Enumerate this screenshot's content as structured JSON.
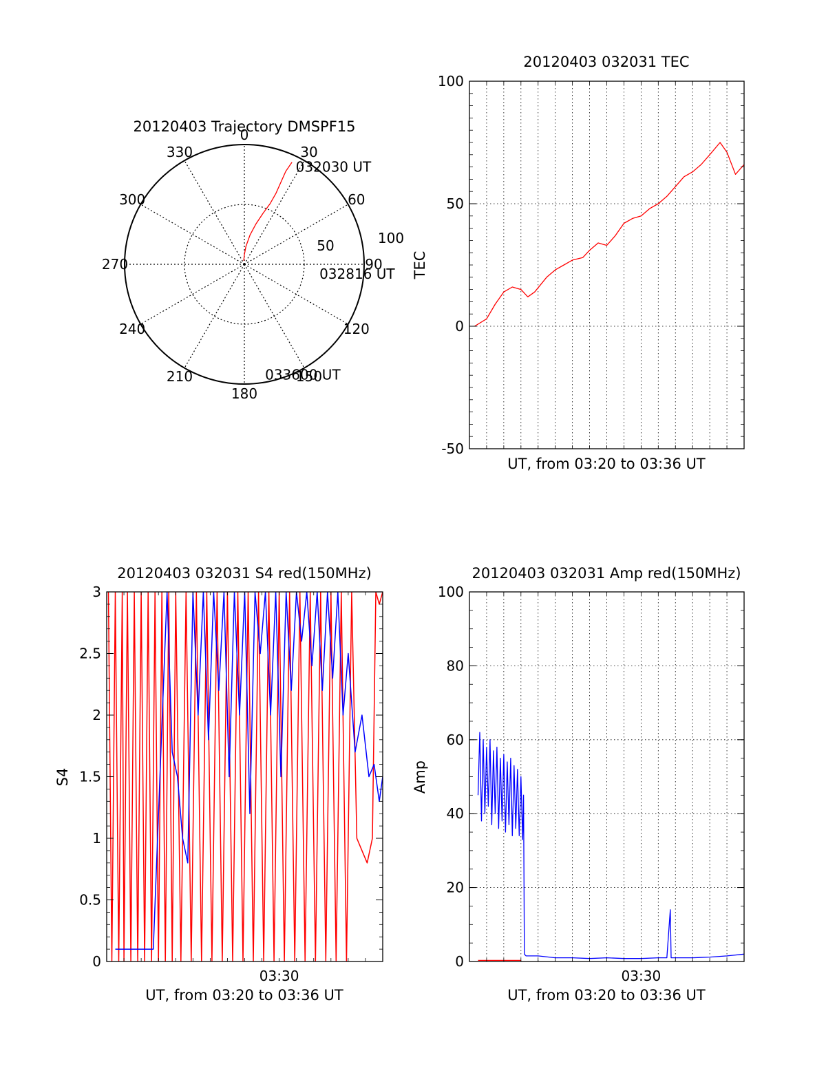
{
  "chart_data": [
    {
      "type": "polar",
      "title": "20120403 Trajectory DMSPF15",
      "angle_labels": [
        "0",
        "30",
        "60",
        "90",
        "120",
        "150",
        "180",
        "210",
        "240",
        "270",
        "300",
        "330"
      ],
      "radial_labels": [
        "50",
        "100"
      ],
      "rlim": [
        0,
        100
      ],
      "grid": true,
      "series": [
        {
          "color": "#ff0000",
          "points": [
            [
              25,
              94
            ],
            [
              24,
              85
            ],
            [
              24,
              75
            ],
            [
              24,
              65
            ],
            [
              23,
              55
            ],
            [
              20,
              45
            ],
            [
              16,
              35
            ],
            [
              11,
              25
            ],
            [
              5,
              15
            ],
            [
              0,
              8
            ],
            [
              -10,
              3
            ]
          ],
          "point_labels": []
        }
      ],
      "annotations": [
        {
          "text": "032030 UT",
          "angle": 27,
          "r": 92
        },
        {
          "text": "032816 UT",
          "angle": 97,
          "r": 62
        },
        {
          "text": "033600 UT",
          "angle": 170,
          "r": 93
        }
      ]
    },
    {
      "type": "line",
      "title": "20120403 032031 TEC",
      "xlabel": "UT, from 03:20 to 03:36 UT",
      "ylabel": "TEC",
      "xlim": [
        0,
        16
      ],
      "ylim": [
        -50,
        100
      ],
      "yticks": [
        -50,
        0,
        50,
        100
      ],
      "xticks": [],
      "grid": true,
      "series": [
        {
          "color": "#ff0000",
          "points": [
            [
              0.3,
              0
            ],
            [
              1.0,
              3
            ],
            [
              1.5,
              9
            ],
            [
              2.0,
              14
            ],
            [
              2.5,
              16
            ],
            [
              3.0,
              15
            ],
            [
              3.4,
              12
            ],
            [
              3.8,
              14
            ],
            [
              4.5,
              20
            ],
            [
              5.0,
              23
            ],
            [
              5.5,
              25
            ],
            [
              6.0,
              27
            ],
            [
              6.6,
              28
            ],
            [
              7.0,
              31
            ],
            [
              7.5,
              34
            ],
            [
              8.0,
              33
            ],
            [
              8.5,
              37
            ],
            [
              9.0,
              42
            ],
            [
              9.5,
              44
            ],
            [
              10.0,
              45
            ],
            [
              10.5,
              48
            ],
            [
              11.0,
              50
            ],
            [
              11.5,
              53
            ],
            [
              12.0,
              57
            ],
            [
              12.5,
              61
            ],
            [
              13.0,
              63
            ],
            [
              13.5,
              66
            ],
            [
              14.0,
              70
            ],
            [
              14.6,
              75
            ],
            [
              15.0,
              71
            ],
            [
              15.5,
              62
            ],
            [
              16.0,
              66
            ]
          ]
        }
      ]
    },
    {
      "type": "line",
      "title": "20120403 032031 S4 red(150MHz)",
      "xlabel": "UT, from 03:20 to 03:36 UT",
      "ylabel": "S4",
      "xlim": [
        0,
        16
      ],
      "ylim": [
        0,
        3
      ],
      "yticks": [
        0,
        0.5,
        1,
        1.5,
        2,
        2.5,
        3
      ],
      "xticks": [
        "03:30"
      ],
      "grid": false,
      "series": [
        {
          "color": "#ff0000",
          "points": [
            [
              0.1,
              3
            ],
            [
              0.3,
              0
            ],
            [
              0.5,
              3
            ],
            [
              0.7,
              0
            ],
            [
              0.9,
              3
            ],
            [
              1.0,
              0
            ],
            [
              1.2,
              3
            ],
            [
              1.4,
              0
            ],
            [
              1.6,
              3
            ],
            [
              1.8,
              0
            ],
            [
              2.0,
              3
            ],
            [
              2.2,
              0
            ],
            [
              2.4,
              3
            ],
            [
              2.6,
              0
            ],
            [
              2.8,
              3
            ],
            [
              3.0,
              0
            ],
            [
              3.2,
              3
            ],
            [
              3.4,
              0
            ],
            [
              3.6,
              3
            ],
            [
              3.8,
              0
            ],
            [
              4.0,
              3
            ],
            [
              4.3,
              0
            ],
            [
              4.6,
              3
            ],
            [
              4.9,
              0
            ],
            [
              5.2,
              3
            ],
            [
              5.5,
              0
            ],
            [
              5.8,
              3
            ],
            [
              6.1,
              0
            ],
            [
              6.4,
              3
            ],
            [
              6.7,
              0
            ],
            [
              7.0,
              3
            ],
            [
              7.3,
              0
            ],
            [
              7.6,
              3
            ],
            [
              7.9,
              0
            ],
            [
              8.2,
              3
            ],
            [
              8.5,
              0
            ],
            [
              8.8,
              3
            ],
            [
              9.1,
              0
            ],
            [
              9.4,
              3
            ],
            [
              9.7,
              0
            ],
            [
              10.0,
              3
            ],
            [
              10.3,
              0
            ],
            [
              10.6,
              3
            ],
            [
              10.9,
              0
            ],
            [
              11.2,
              3
            ],
            [
              11.5,
              0
            ],
            [
              11.8,
              3
            ],
            [
              12.1,
              0
            ],
            [
              12.4,
              3
            ],
            [
              12.7,
              0
            ],
            [
              13.0,
              3
            ],
            [
              13.3,
              0
            ],
            [
              13.6,
              3
            ],
            [
              13.9,
              0
            ],
            [
              14.2,
              3
            ],
            [
              14.5,
              1.0
            ],
            [
              14.8,
              0.9
            ],
            [
              15.1,
              0.8
            ],
            [
              15.4,
              1.0
            ],
            [
              15.6,
              3
            ],
            [
              15.8,
              2.9
            ],
            [
              16.0,
              3
            ]
          ]
        },
        {
          "color": "#0000ff",
          "points": [
            [
              0.5,
              0.1
            ],
            [
              1.5,
              0.1
            ],
            [
              2.7,
              0.1
            ],
            [
              3.5,
              3
            ],
            [
              3.8,
              1.7
            ],
            [
              4.1,
              1.5
            ],
            [
              4.4,
              1.0
            ],
            [
              4.7,
              0.8
            ],
            [
              5.0,
              3
            ],
            [
              5.3,
              2.0
            ],
            [
              5.6,
              3
            ],
            [
              5.9,
              1.8
            ],
            [
              6.2,
              3
            ],
            [
              6.5,
              2.2
            ],
            [
              6.8,
              3
            ],
            [
              7.1,
              1.5
            ],
            [
              7.4,
              3
            ],
            [
              7.7,
              2.0
            ],
            [
              8.0,
              3
            ],
            [
              8.3,
              1.2
            ],
            [
              8.6,
              3
            ],
            [
              8.9,
              2.5
            ],
            [
              9.2,
              3
            ],
            [
              9.5,
              2.0
            ],
            [
              9.8,
              3
            ],
            [
              10.1,
              1.5
            ],
            [
              10.4,
              3
            ],
            [
              10.7,
              2.2
            ],
            [
              11.0,
              3
            ],
            [
              11.3,
              2.6
            ],
            [
              11.6,
              3
            ],
            [
              11.9,
              2.4
            ],
            [
              12.2,
              3
            ],
            [
              12.5,
              2.2
            ],
            [
              12.8,
              3
            ],
            [
              13.1,
              2.3
            ],
            [
              13.4,
              3
            ],
            [
              13.7,
              2.0
            ],
            [
              14.0,
              2.5
            ],
            [
              14.4,
              1.7
            ],
            [
              14.8,
              2.0
            ],
            [
              15.2,
              1.5
            ],
            [
              15.5,
              1.6
            ],
            [
              15.8,
              1.3
            ],
            [
              16.0,
              1.5
            ]
          ]
        }
      ]
    },
    {
      "type": "line",
      "title": "20120403 032031 Amp red(150MHz)",
      "xlabel": "UT, from 03:20 to 03:36 UT",
      "ylabel": "Amp",
      "xlim": [
        0,
        16
      ],
      "ylim": [
        0,
        100
      ],
      "yticks": [
        0,
        20,
        40,
        60,
        80,
        100
      ],
      "xticks": [
        "03:30"
      ],
      "grid": true,
      "series": [
        {
          "color": "#ff0000",
          "points": [
            [
              0.5,
              0.3
            ],
            [
              3.0,
              0.3
            ]
          ]
        },
        {
          "color": "#0000ff",
          "points": [
            [
              0.5,
              45
            ],
            [
              0.6,
              62
            ],
            [
              0.7,
              38
            ],
            [
              0.8,
              60
            ],
            [
              0.9,
              40
            ],
            [
              1.0,
              58
            ],
            [
              1.1,
              42
            ],
            [
              1.2,
              60
            ],
            [
              1.3,
              37
            ],
            [
              1.4,
              57
            ],
            [
              1.5,
              40
            ],
            [
              1.6,
              58
            ],
            [
              1.7,
              36
            ],
            [
              1.8,
              55
            ],
            [
              1.9,
              38
            ],
            [
              2.0,
              56
            ],
            [
              2.1,
              35
            ],
            [
              2.2,
              54
            ],
            [
              2.3,
              37
            ],
            [
              2.4,
              55
            ],
            [
              2.5,
              34
            ],
            [
              2.6,
              53
            ],
            [
              2.7,
              36
            ],
            [
              2.8,
              52
            ],
            [
              2.9,
              34
            ],
            [
              3.0,
              50
            ],
            [
              3.1,
              33
            ],
            [
              3.15,
              45
            ],
            [
              3.2,
              2
            ],
            [
              3.3,
              1.5
            ],
            [
              4.0,
              1.5
            ],
            [
              5.0,
              1
            ],
            [
              6.0,
              1
            ],
            [
              7.0,
              0.8
            ],
            [
              8.0,
              1
            ],
            [
              9.0,
              0.8
            ],
            [
              10.0,
              0.8
            ],
            [
              11.0,
              1
            ],
            [
              11.5,
              1
            ],
            [
              11.7,
              14
            ],
            [
              11.75,
              1
            ],
            [
              13.0,
              1
            ],
            [
              14.0,
              1.2
            ],
            [
              15.0,
              1.5
            ],
            [
              16.0,
              2
            ]
          ]
        }
      ]
    }
  ]
}
